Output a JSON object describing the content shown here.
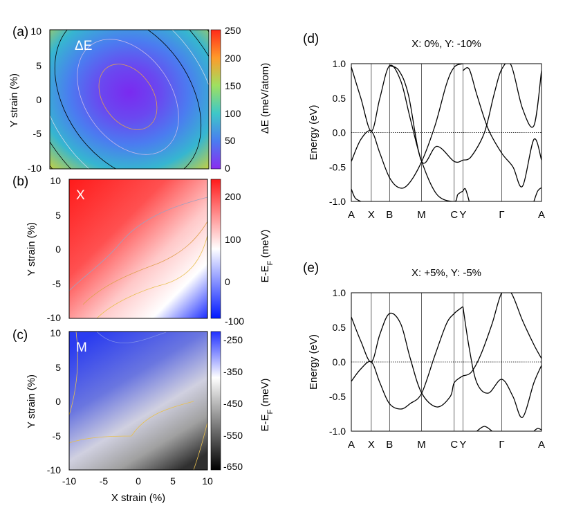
{
  "panels": {
    "a": {
      "letter": "(a)",
      "inner_label": "ΔE",
      "ylabel": "Y strain (%)",
      "yticks": [
        "10",
        "5",
        "0",
        "-5",
        "-10"
      ],
      "colorbar": {
        "label": "ΔE (meV/atom)",
        "ticks": [
          "250",
          "200",
          "150",
          "100",
          "50",
          "0"
        ],
        "stops": [
          "#ff2a1a",
          "#ff9a2a",
          "#9fe060",
          "#3ec8c8",
          "#4a7cf0",
          "#8a2cf0"
        ]
      }
    },
    "b": {
      "letter": "(b)",
      "inner_label": "X",
      "ylabel": "Y strain (%)",
      "yticks": [
        "10",
        "5",
        "0",
        "-5",
        "-10"
      ],
      "colorbar": {
        "label": "E-E",
        "label_sub": "F",
        "label_end": " (meV)",
        "ticks": [
          "200",
          "100",
          "0",
          "-100"
        ],
        "stops": [
          "#ff1a1a",
          "#ffffff",
          "#0018ff"
        ]
      }
    },
    "c": {
      "letter": "(c)",
      "inner_label": "M",
      "ylabel": "Y strain (%)",
      "xlabel": "X strain (%)",
      "yticks": [
        "10",
        "5",
        "0",
        "-5",
        "-10"
      ],
      "xticks": [
        "-10",
        "-5",
        "0",
        "5",
        "10"
      ],
      "colorbar": {
        "label": "E-E",
        "label_sub": "F",
        "label_end": " (meV)",
        "ticks": [
          "-250",
          "-350",
          "-450",
          "-550",
          "-650"
        ],
        "stops": [
          "#2030ff",
          "#ffffff",
          "#808080",
          "#000000"
        ]
      }
    }
  },
  "chart_data": [
    {
      "type": "line",
      "letter": "(d)",
      "title": "X: 0%, Y: -10%",
      "ylabel": "Energy (eV)",
      "ylim": [
        -1.0,
        1.0
      ],
      "yticks": [
        "1.0",
        "0.5",
        "0.0",
        "-0.5",
        "-1.0"
      ],
      "kpoints": [
        "A",
        "X",
        "B",
        "M",
        "C",
        "Y",
        "Γ",
        "A"
      ],
      "kpos": [
        0,
        0.105,
        0.201,
        0.369,
        0.541,
        0.587,
        0.791,
        1.0
      ],
      "fermi_level": 0.0,
      "bands": [
        {
          "x": [
            0,
            0.05,
            0.105,
            0.15,
            0.201,
            0.26,
            0.31,
            0.37,
            0.45,
            0.541,
            0.56,
            0.587
          ],
          "y": [
            0.95,
            0.5,
            0.02,
            0.5,
            0.97,
            0.75,
            0.2,
            -0.42,
            -0.9,
            -1.0,
            -0.9,
            -0.85
          ]
        },
        {
          "x": [
            0,
            0.05,
            0.105,
            0.15,
            0.2,
            0.25,
            0.3,
            0.37,
            0.44,
            0.5,
            0.541,
            0.587
          ],
          "y": [
            -0.42,
            -0.1,
            0.02,
            -0.3,
            -0.65,
            -0.8,
            -0.75,
            -0.42,
            0.1,
            0.7,
            0.95,
            1.0
          ]
        },
        {
          "x": [
            0.201,
            0.25,
            0.3,
            0.37,
            0.45,
            0.541,
            0.587
          ],
          "y": [
            0.97,
            0.9,
            0.55,
            -0.42,
            -0.2,
            -0.42,
            -0.4
          ]
        },
        {
          "x": [
            0.587,
            0.62,
            0.66,
            0.72,
            0.791,
            0.85,
            0.9,
            0.96,
            1.0
          ],
          "y": [
            0.9,
            0.92,
            0.55,
            0.05,
            -0.3,
            -0.5,
            -0.78,
            -0.1,
            -0.4
          ]
        },
        {
          "x": [
            0.587,
            0.63,
            0.7,
            0.75,
            0.791,
            0.84,
            0.9,
            0.96,
            1.0
          ],
          "y": [
            -0.4,
            -0.35,
            0.0,
            0.55,
            0.92,
            0.98,
            0.35,
            0.1,
            0.9
          ]
        },
        {
          "x": [
            0,
            0.02,
            0.05
          ],
          "y": [
            -0.82,
            -0.95,
            -1.0
          ]
        },
        {
          "x": [
            0.587,
            0.6,
            0.62
          ],
          "y": [
            -0.85,
            -0.82,
            -1.0
          ]
        },
        {
          "x": [
            0.96,
            0.98,
            1.0
          ],
          "y": [
            -1.0,
            -0.85,
            -0.8
          ]
        }
      ]
    },
    {
      "type": "line",
      "letter": "(e)",
      "title": "X: +5%, Y: -5%",
      "ylabel": "Energy (eV)",
      "ylim": [
        -1.0,
        1.0
      ],
      "yticks": [
        "1.0",
        "0.5",
        "0.0",
        "-0.5",
        "-1.0"
      ],
      "kpoints": [
        "A",
        "X",
        "B",
        "M",
        "C",
        "Y",
        "Γ",
        "A"
      ],
      "kpos": [
        0,
        0.105,
        0.201,
        0.369,
        0.541,
        0.587,
        0.791,
        1.0
      ],
      "fermi_level": 0.0,
      "bands": [
        {
          "x": [
            0,
            0.05,
            0.105,
            0.15,
            0.201,
            0.26,
            0.31,
            0.37,
            0.45,
            0.52,
            0.541,
            0.587
          ],
          "y": [
            0.65,
            0.3,
            0.0,
            0.4,
            0.7,
            0.55,
            0.05,
            -0.45,
            -0.65,
            -0.5,
            -0.3,
            -0.2
          ]
        },
        {
          "x": [
            0,
            0.05,
            0.105,
            0.15,
            0.2,
            0.26,
            0.31,
            0.37,
            0.44,
            0.5,
            0.541,
            0.587
          ],
          "y": [
            -0.28,
            -0.1,
            0.0,
            -0.3,
            -0.6,
            -0.68,
            -0.6,
            -0.45,
            0.1,
            0.55,
            0.7,
            0.8
          ]
        },
        {
          "x": [
            0.587,
            0.62,
            0.66,
            0.72,
            0.791,
            0.85,
            0.9,
            0.96,
            1.0
          ],
          "y": [
            0.8,
            0.2,
            -0.3,
            -0.45,
            -0.25,
            -0.5,
            -0.8,
            -0.3,
            -0.05
          ]
        },
        {
          "x": [
            0.587,
            0.63,
            0.68,
            0.74,
            0.791,
            0.84,
            0.9,
            0.96,
            1.0
          ],
          "y": [
            -0.2,
            -0.15,
            0.1,
            0.55,
            1.0,
            1.0,
            0.6,
            0.25,
            0.05
          ]
        },
        {
          "x": [
            0.66,
            0.7,
            0.74
          ],
          "y": [
            -1.0,
            -0.93,
            -1.0
          ]
        },
        {
          "x": [
            0.96,
            0.98,
            1.0
          ],
          "y": [
            -1.0,
            -0.96,
            -0.98
          ]
        }
      ]
    }
  ]
}
